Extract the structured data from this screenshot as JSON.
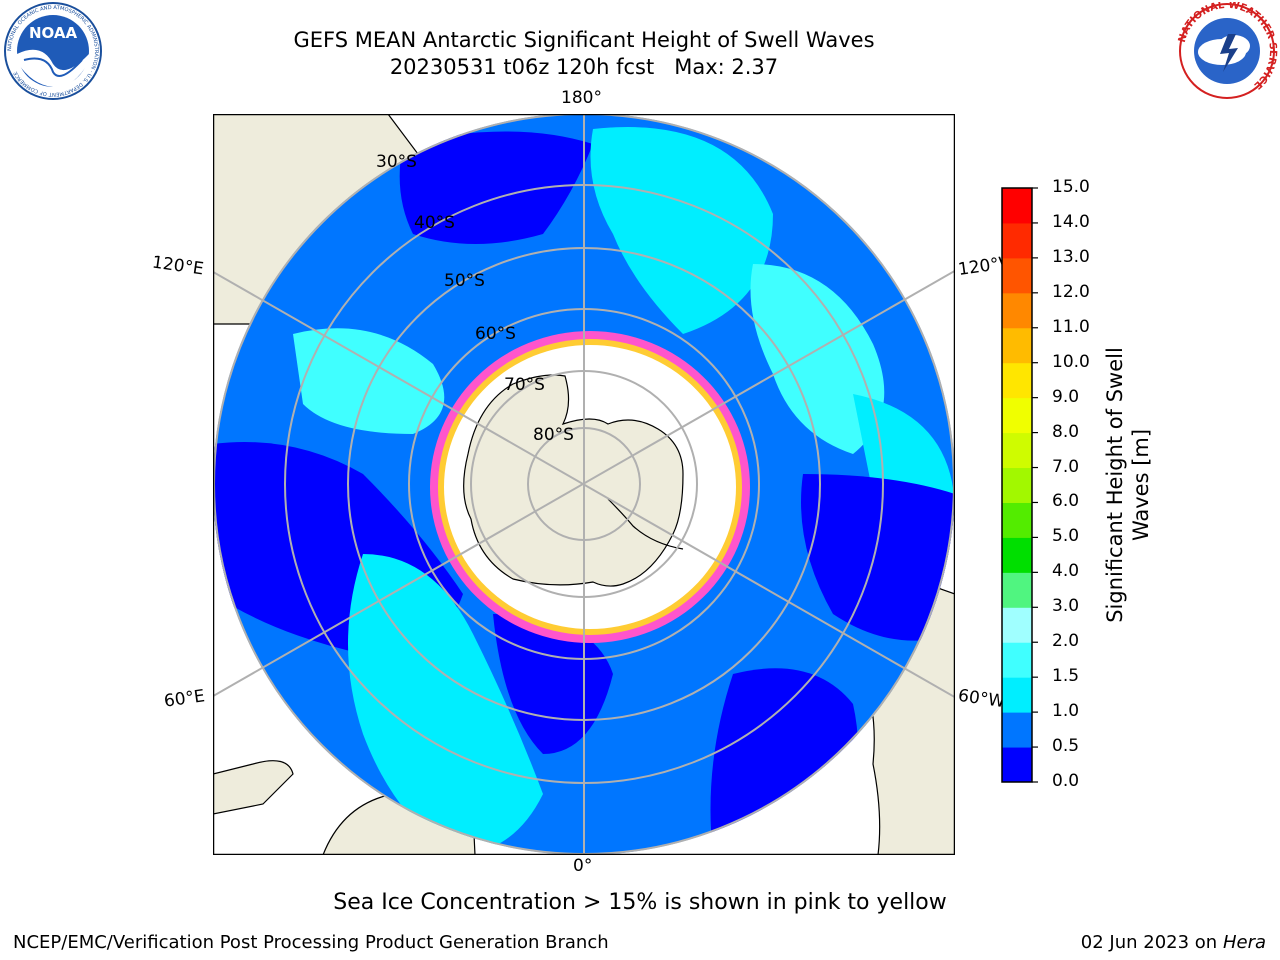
{
  "title": {
    "line1": "GEFS MEAN Antarctic Significant Height of Swell Waves",
    "line2": "20230531 t06z 120h fcst   Max: 2.37"
  },
  "map": {
    "projection": "south-polar-stereographic",
    "longitude_labels": {
      "top": "180°",
      "bottom": "0°",
      "upper_left": "120°E",
      "upper_right": "120°W",
      "lower_left": "60°E",
      "lower_right": "60°W"
    },
    "latitude_labels": [
      "30°S",
      "40°S",
      "50°S",
      "60°S",
      "70°S",
      "80°S"
    ],
    "colors": {
      "land": "#eeecdc",
      "ice_free_white": "#ffffff",
      "graticule": "#b0b0b0",
      "coast": "#000000",
      "sea_ice_pink": "#ff55cc",
      "sea_ice_yellow": "#ffcc33"
    }
  },
  "colorbar": {
    "title_line1": "Significant Height of Swell",
    "title_line2": "Waves [m]",
    "ticks": [
      "0.0",
      "0.5",
      "1.0",
      "1.5",
      "2.0",
      "3.0",
      "4.0",
      "5.0",
      "6.0",
      "7.0",
      "8.0",
      "9.0",
      "10.0",
      "11.0",
      "12.0",
      "13.0",
      "14.0",
      "15.0"
    ],
    "colors": [
      "#0000ff",
      "#0076ff",
      "#00eeff",
      "#40ffff",
      "#a0ffff",
      "#50f580",
      "#00df00",
      "#53ec00",
      "#a2f800",
      "#cffc00",
      "#f0ff00",
      "#ffe600",
      "#ffbb00",
      "#ff8800",
      "#ff5500",
      "#ff2a00",
      "#ff0000"
    ]
  },
  "footer": {
    "note": "Sea Ice Concentration > 15% is shown in pink to yellow",
    "credit": "NCEP/EMC/Verification Post Processing Product Generation Branch",
    "date": "02 Jun 2023 on",
    "machine": "Hera"
  },
  "logos": {
    "left_icon": "noaa-logo",
    "left_text": "NOAA",
    "left_ring_text": "NATIONAL OCEANIC AND ATMOSPHERIC ADMINISTRATION · U.S. DEPARTMENT OF COMMERCE",
    "right_icon": "nws-logo",
    "right_ring_text": "NATIONAL WEATHER SERVICE"
  }
}
